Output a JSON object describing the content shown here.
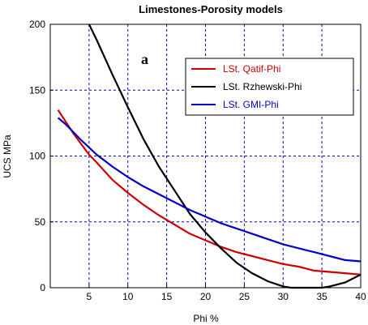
{
  "chart_data": {
    "type": "line",
    "title": "Limestones-Porosity models",
    "xlabel": "Phi %",
    "ylabel": "UCS MPa",
    "panel_label": "a",
    "xlim": [
      0,
      40
    ],
    "ylim": [
      0,
      200
    ],
    "xticks": [
      0,
      5,
      10,
      15,
      20,
      25,
      30,
      35,
      40
    ],
    "yticks": [
      0,
      50,
      100,
      150,
      200
    ],
    "grid": true,
    "legend_position": "top-right",
    "series": [
      {
        "name": "LSt. Qatif-Phi",
        "color": "#cc0000",
        "x": [
          1,
          2,
          3,
          4,
          5,
          6,
          8,
          10,
          12,
          14,
          16,
          18,
          20,
          22,
          24,
          26,
          28,
          30,
          32,
          34,
          36,
          38,
          40
        ],
        "y": [
          135,
          126,
          117,
          109,
          101,
          95,
          82,
          72,
          63,
          55,
          48,
          41,
          36,
          31,
          27,
          24,
          21,
          18,
          16,
          13,
          12,
          11,
          10
        ]
      },
      {
        "name": "LSt. Rzhewski-Phi",
        "color": "#000000",
        "x": [
          5,
          6,
          8,
          10,
          12,
          14,
          16,
          18,
          20,
          22,
          24,
          26,
          28,
          30,
          31,
          32,
          33,
          34,
          35,
          36,
          38,
          40
        ],
        "y": [
          200,
          188,
          162,
          137,
          113,
          92,
          74,
          56,
          42,
          30,
          19,
          11,
          5,
          1,
          0,
          0,
          0,
          0,
          0,
          1,
          4,
          10
        ]
      },
      {
        "name": "LSt. GMI-Phi",
        "color": "#0000cc",
        "x": [
          1,
          2,
          4,
          6,
          8,
          10,
          12,
          14,
          16,
          18,
          20,
          22,
          24,
          26,
          28,
          30,
          32,
          34,
          36,
          38,
          40
        ],
        "y": [
          129,
          124,
          112,
          101,
          92,
          84,
          77,
          71,
          65,
          59,
          54,
          49,
          45,
          41,
          37,
          33,
          30,
          27,
          24,
          21,
          20
        ]
      }
    ]
  }
}
